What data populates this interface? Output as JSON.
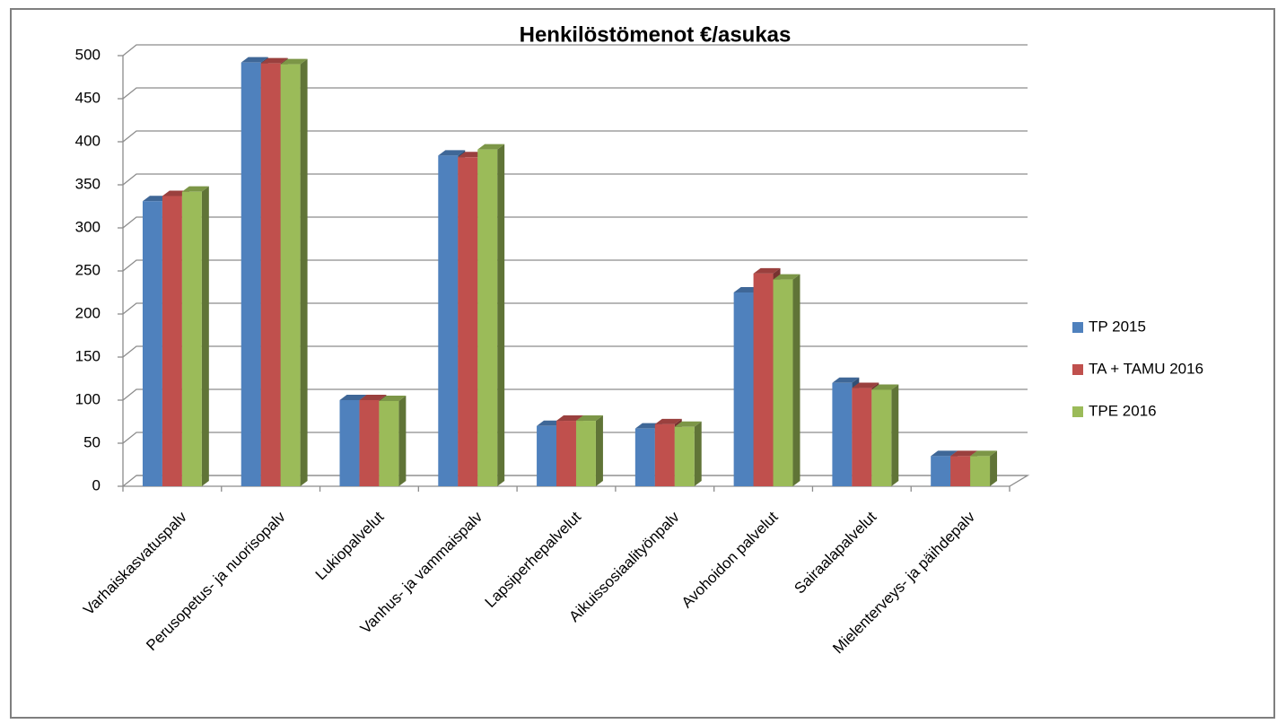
{
  "chart_data": {
    "type": "bar3d",
    "title": "Henkilöstömenot €/asukas",
    "categories": [
      "Varhaiskasvatuspalv",
      "Perusopetus- ja nuorisopalv",
      "Lukiopalvelut",
      "Vanhus- ja vammaispalv",
      "Lapsiperhepalvelut",
      "Aikuissosiaalityönpalv",
      "Avohoidon palvelut",
      "Sairaalapalvelut",
      "Mielenterveys- ja päihdepalv"
    ],
    "series": [
      {
        "name": "TP 2015",
        "color": "#4f81bd",
        "values": [
          331,
          492,
          100,
          384,
          70,
          67,
          225,
          120,
          35
        ]
      },
      {
        "name": "TA + TAMU 2016",
        "color": "#c0504d",
        "values": [
          337,
          491,
          100,
          382,
          76,
          72,
          247,
          114,
          35
        ]
      },
      {
        "name": "TPE 2016",
        "color": "#9bbb59",
        "values": [
          342,
          490,
          99,
          391,
          76,
          69,
          240,
          112,
          35
        ]
      }
    ],
    "ylim": [
      0,
      500
    ],
    "yticks": [
      0,
      50,
      100,
      150,
      200,
      250,
      300,
      350,
      400,
      450,
      500
    ],
    "grid": true,
    "legend": "right"
  }
}
